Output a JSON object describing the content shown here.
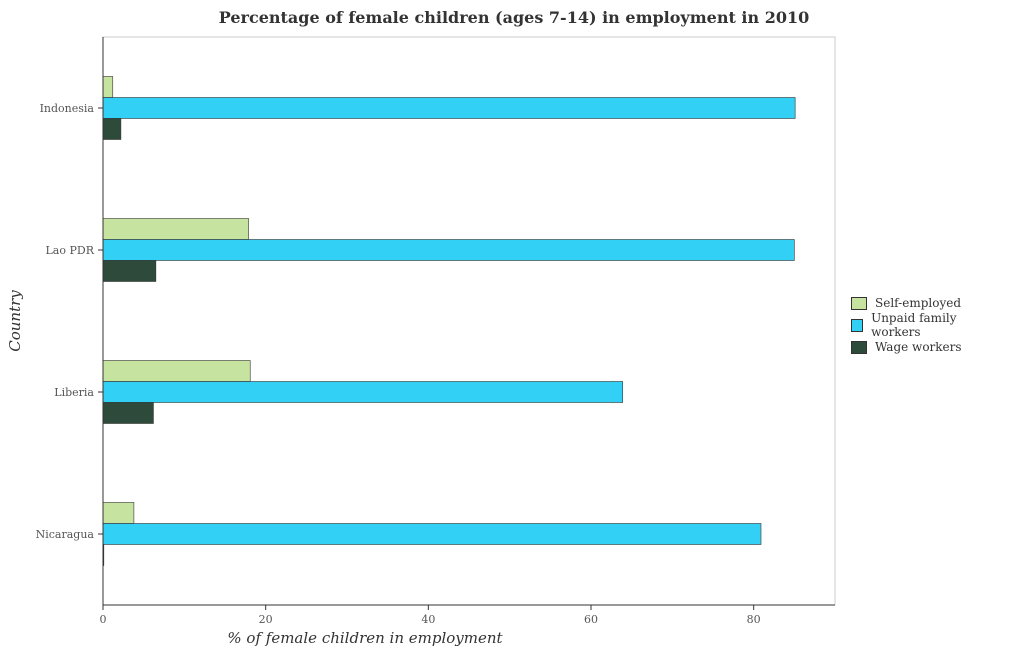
{
  "chart_data": {
    "type": "bar",
    "orientation": "horizontal",
    "title": "Percentage of female children (ages 7-14) in employment in 2010",
    "xlabel": "% of female children in employment",
    "ylabel": "Country",
    "categories": [
      "Indonesia",
      "Lao PDR",
      "Liberia",
      "Nicaragua"
    ],
    "series": [
      {
        "name": "Self-employed",
        "color": "#c7e3a0",
        "values": [
          1.2,
          17.9,
          18.1,
          3.8
        ]
      },
      {
        "name": "Unpaid family workers",
        "color": "#33d0f5",
        "values": [
          85.1,
          85.0,
          63.9,
          80.9
        ]
      },
      {
        "name": "Wage workers",
        "color": "#2d4a3a",
        "values": [
          2.2,
          6.5,
          6.2,
          0.1
        ]
      }
    ],
    "xlim": [
      0,
      90
    ],
    "xticks": [
      0,
      20,
      40,
      60,
      80
    ],
    "grid": false,
    "legend_position": "right"
  }
}
